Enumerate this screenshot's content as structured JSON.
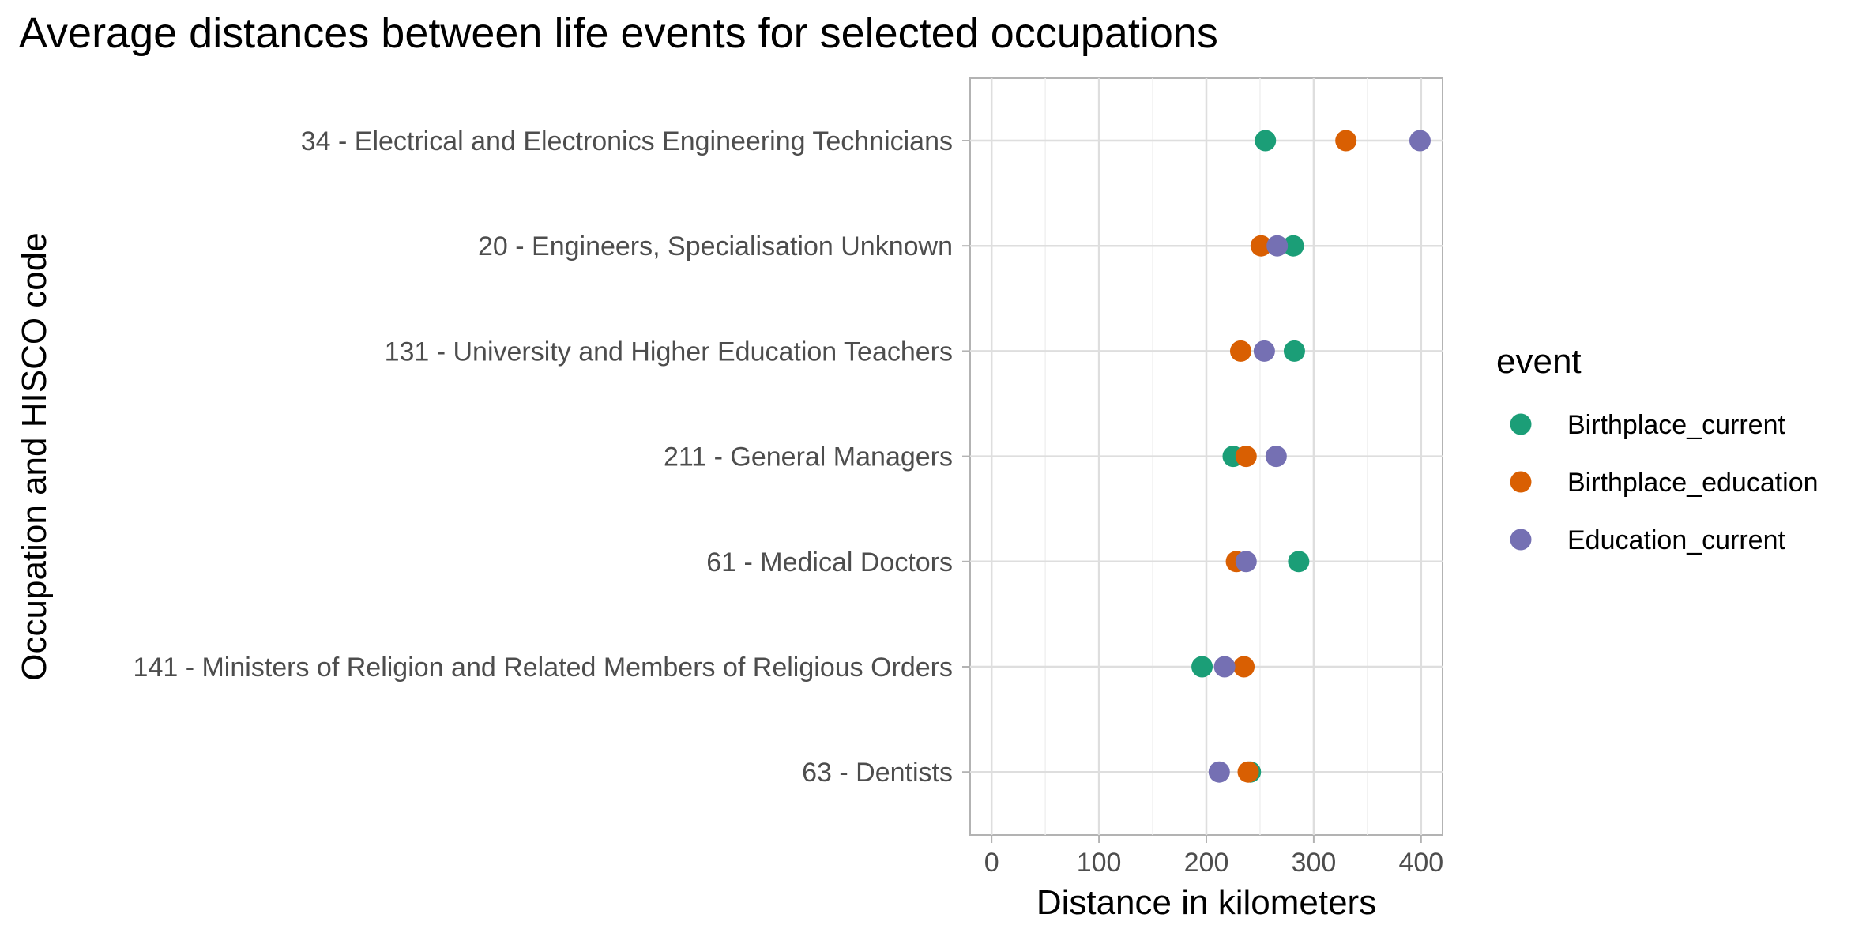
{
  "chart_data": {
    "type": "scatter",
    "title": "Average distances between life events for selected occupations",
    "xlabel": "Distance in kilometers",
    "ylabel": "Occupation and HISCO code",
    "xlim": [
      -20,
      420
    ],
    "x_ticks": [
      0,
      100,
      200,
      300,
      400
    ],
    "x_tick_labels": [
      "0",
      "100",
      "200",
      "300",
      "400"
    ],
    "grid": true,
    "legend_position": "right",
    "legend_title": "event",
    "categories": [
      "34 - Electrical and Electronics Engineering Technicians",
      "20 - Engineers, Specialisation Unknown",
      "131 - University and Higher Education Teachers",
      "211 - General Managers",
      "61 - Medical Doctors",
      "141 - Ministers of Religion and Related Members of Religious Orders",
      "63 - Dentists"
    ],
    "series": [
      {
        "name": "Birthplace_current",
        "color": "#1b9e77",
        "values": [
          255,
          281,
          282,
          225,
          286,
          196,
          241
        ]
      },
      {
        "name": "Birthplace_education",
        "color": "#d95f02",
        "values": [
          330,
          251,
          232,
          237,
          228,
          235,
          239
        ]
      },
      {
        "name": "Education_current",
        "color": "#7570b3",
        "values": [
          399,
          266,
          254,
          265,
          237,
          217,
          212
        ]
      }
    ]
  }
}
